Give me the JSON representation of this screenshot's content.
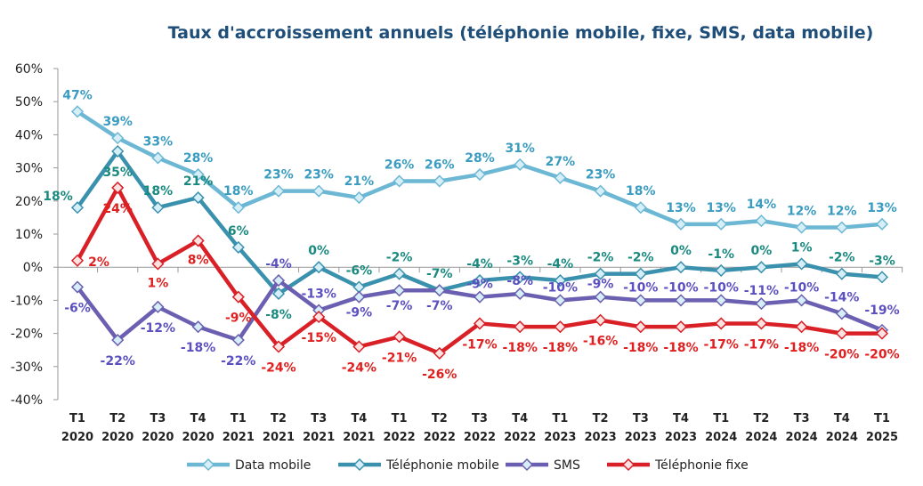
{
  "chart_data": {
    "type": "line",
    "title": "Taux d'accroissement annuels (téléphonie mobile, fixe, SMS, data mobile)",
    "categories": [
      [
        "T1",
        "2020"
      ],
      [
        "T2",
        "2020"
      ],
      [
        "T3",
        "2020"
      ],
      [
        "T4",
        "2020"
      ],
      [
        "T1",
        "2021"
      ],
      [
        "T2",
        "2021"
      ],
      [
        "T3",
        "2021"
      ],
      [
        "T4",
        "2021"
      ],
      [
        "T1",
        "2022"
      ],
      [
        "T2",
        "2022"
      ],
      [
        "T3",
        "2022"
      ],
      [
        "T4",
        "2022"
      ],
      [
        "T1",
        "2023"
      ],
      [
        "T2",
        "2023"
      ],
      [
        "T3",
        "2023"
      ],
      [
        "T4",
        "2023"
      ],
      [
        "T1",
        "2024"
      ],
      [
        "T2",
        "2024"
      ],
      [
        "T3",
        "2024"
      ],
      [
        "T4",
        "2024"
      ],
      [
        "T1",
        "2025"
      ]
    ],
    "ylim": [
      -40,
      60
    ],
    "yticks": [
      "60%",
      "50%",
      "40%",
      "30%",
      "20%",
      "10%",
      "0%",
      "-10%",
      "-20%",
      "-30%",
      "-40%"
    ],
    "grid": false,
    "legend_placement": "bottom",
    "series": [
      {
        "name": "Data mobile",
        "color": "#6cb8d4",
        "label_color": "#3a9cc0",
        "values": [
          47,
          39,
          33,
          28,
          18,
          23,
          23,
          21,
          26,
          26,
          28,
          31,
          27,
          23,
          18,
          13,
          13,
          14,
          12,
          12,
          13
        ]
      },
      {
        "name": "Téléphonie mobile",
        "color": "#3a91ad",
        "label_color": "#1a8a80",
        "values": [
          18,
          35,
          18,
          21,
          6,
          -8,
          0,
          -6,
          -2,
          -7,
          -4,
          -3,
          -4,
          -2,
          -2,
          0,
          -1,
          0,
          1,
          -2,
          -3
        ]
      },
      {
        "name": "SMS",
        "color": "#6a5fb0",
        "label_color": "#5b50c0",
        "values": [
          -6,
          -22,
          -12,
          -18,
          -22,
          -4,
          -13,
          -9,
          -7,
          -7,
          -9,
          -8,
          -10,
          -9,
          -10,
          -10,
          -10,
          -11,
          -10,
          -14,
          -19
        ]
      },
      {
        "name": "Téléphonie fixe",
        "color": "#d92026",
        "label_color": "#e0201f",
        "values": [
          2,
          24,
          1,
          8,
          -9,
          -24,
          -15,
          -24,
          -21,
          -26,
          -17,
          -18,
          -18,
          -16,
          -18,
          -18,
          -17,
          -17,
          -18,
          -20,
          -20
        ]
      }
    ]
  }
}
